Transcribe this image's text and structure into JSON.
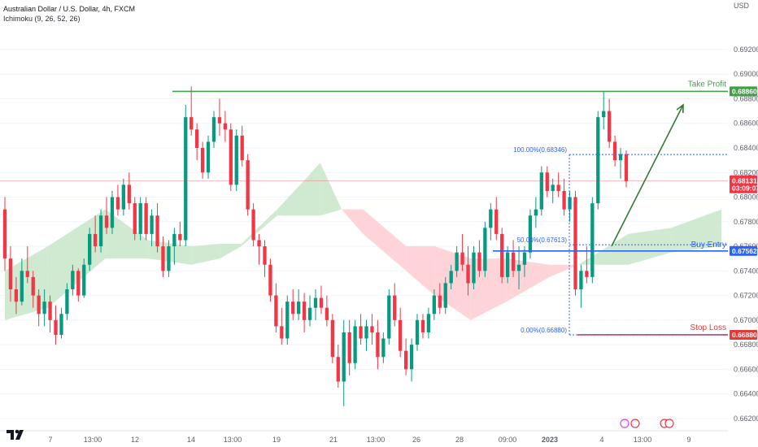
{
  "header": {
    "title": "Australian Dollar / U.S. Dollar, 4h, FXCM",
    "indicator": "Ichimoku (9, 26, 52, 26)"
  },
  "chart_data": {
    "type": "candlestick",
    "currency": "USD",
    "ylim": [
      0.661,
      0.6955
    ],
    "yticks": [
      "0.69200",
      "0.69000",
      "0.68800",
      "0.68600",
      "0.68400",
      "0.68200",
      "0.68000",
      "0.67800",
      "0.67600",
      "0.67400",
      "0.67200",
      "0.67000",
      "0.66800",
      "0.66600",
      "0.66400",
      "0.66200"
    ],
    "xticks": [
      "7",
      "13:00",
      "12",
      "14",
      "13:00",
      "19",
      "21",
      "13:00",
      "26",
      "28",
      "09:00",
      "2023",
      "4",
      "13:00",
      "9"
    ],
    "current_price": "0.68131",
    "countdown": "03:09:07",
    "levels": {
      "take_profit": {
        "label": "Take Profit",
        "price": 0.6886,
        "tag": "0.68860",
        "color": "#43a047"
      },
      "buy_entry": {
        "label": "Buy Entry",
        "price": 0.67562,
        "tag": "0.67562",
        "color": "#2962ff"
      },
      "stop_loss": {
        "label": "Stop Loss",
        "price": 0.6688,
        "tag": "0.66880",
        "color": "#e53935"
      }
    },
    "fib": {
      "color": "#2962ff",
      "levels": [
        {
          "label": "100.00%(0.68346)",
          "price": 0.68346
        },
        {
          "label": "50.00%(0.67613)",
          "price": 0.67613
        },
        {
          "label": "0.00%(0.66880)",
          "price": 0.6688
        }
      ]
    },
    "colors": {
      "up": "#089981",
      "down": "#f23645",
      "cloud_bull": "#c8e6c9",
      "cloud_bear": "#ffcdd2",
      "price_tag": "#f23645"
    },
    "candles": [
      [
        0.679,
        0.68,
        0.674,
        0.675
      ],
      [
        0.675,
        0.676,
        0.6715,
        0.6725
      ],
      [
        0.6725,
        0.6735,
        0.6705,
        0.6715
      ],
      [
        0.6715,
        0.675,
        0.6712,
        0.674
      ],
      [
        0.674,
        0.676,
        0.673,
        0.6735
      ],
      [
        0.6735,
        0.674,
        0.671,
        0.672
      ],
      [
        0.672,
        0.6725,
        0.6695,
        0.6705
      ],
      [
        0.6705,
        0.6725,
        0.6695,
        0.6715
      ],
      [
        0.6715,
        0.672,
        0.669,
        0.67
      ],
      [
        0.67,
        0.6712,
        0.668,
        0.6688
      ],
      [
        0.6688,
        0.671,
        0.6685,
        0.6705
      ],
      [
        0.6705,
        0.673,
        0.67,
        0.6725
      ],
      [
        0.6725,
        0.6745,
        0.672,
        0.674
      ],
      [
        0.674,
        0.6742,
        0.6715,
        0.672
      ],
      [
        0.672,
        0.675,
        0.6718,
        0.6745
      ],
      [
        0.6745,
        0.6775,
        0.674,
        0.677
      ],
      [
        0.677,
        0.6785,
        0.6755,
        0.676
      ],
      [
        0.676,
        0.679,
        0.6755,
        0.6785
      ],
      [
        0.6785,
        0.68,
        0.677,
        0.6775
      ],
      [
        0.6775,
        0.6805,
        0.677,
        0.68
      ],
      [
        0.68,
        0.681,
        0.6785,
        0.679
      ],
      [
        0.679,
        0.6815,
        0.6785,
        0.681
      ],
      [
        0.681,
        0.682,
        0.679,
        0.6795
      ],
      [
        0.6795,
        0.68,
        0.6765,
        0.677
      ],
      [
        0.677,
        0.68,
        0.6765,
        0.6795
      ],
      [
        0.6795,
        0.68,
        0.6765,
        0.677
      ],
      [
        0.677,
        0.679,
        0.676,
        0.6785
      ],
      [
        0.6785,
        0.6795,
        0.6755,
        0.676
      ],
      [
        0.676,
        0.6768,
        0.6735,
        0.674
      ],
      [
        0.674,
        0.6765,
        0.6735,
        0.676
      ],
      [
        0.676,
        0.6775,
        0.6745,
        0.677
      ],
      [
        0.677,
        0.678,
        0.676,
        0.6765
      ],
      [
        0.6765,
        0.6875,
        0.676,
        0.6865
      ],
      [
        0.6865,
        0.689,
        0.685,
        0.6855
      ],
      [
        0.6855,
        0.686,
        0.683,
        0.684
      ],
      [
        0.684,
        0.6845,
        0.6815,
        0.682
      ],
      [
        0.682,
        0.685,
        0.6815,
        0.6845
      ],
      [
        0.6845,
        0.687,
        0.684,
        0.6865
      ],
      [
        0.6865,
        0.688,
        0.685,
        0.686
      ],
      [
        0.686,
        0.687,
        0.6845,
        0.6855
      ],
      [
        0.6855,
        0.686,
        0.6805,
        0.681
      ],
      [
        0.681,
        0.6855,
        0.6805,
        0.685
      ],
      [
        0.685,
        0.6858,
        0.6825,
        0.683
      ],
      [
        0.683,
        0.6835,
        0.6785,
        0.679
      ],
      [
        0.679,
        0.6795,
        0.676,
        0.6765
      ],
      [
        0.6765,
        0.677,
        0.6745,
        0.676
      ],
      [
        0.676,
        0.6765,
        0.6735,
        0.6745
      ],
      [
        0.6745,
        0.675,
        0.6715,
        0.672
      ],
      [
        0.672,
        0.673,
        0.669,
        0.6695
      ],
      [
        0.6695,
        0.671,
        0.668,
        0.6685
      ],
      [
        0.6685,
        0.672,
        0.668,
        0.6715
      ],
      [
        0.6715,
        0.6725,
        0.67,
        0.6705
      ],
      [
        0.6705,
        0.6725,
        0.67,
        0.6715
      ],
      [
        0.6715,
        0.6722,
        0.669,
        0.67
      ],
      [
        0.67,
        0.672,
        0.6695,
        0.671
      ],
      [
        0.671,
        0.6725,
        0.67,
        0.6718
      ],
      [
        0.6718,
        0.6728,
        0.6705,
        0.671
      ],
      [
        0.671,
        0.672,
        0.6695,
        0.67
      ],
      [
        0.67,
        0.6705,
        0.6665,
        0.667
      ],
      [
        0.667,
        0.668,
        0.6645,
        0.665
      ],
      [
        0.665,
        0.67,
        0.663,
        0.669
      ],
      [
        0.669,
        0.67,
        0.6655,
        0.6665
      ],
      [
        0.6665,
        0.67,
        0.666,
        0.6695
      ],
      [
        0.6695,
        0.6705,
        0.668,
        0.6685
      ],
      [
        0.6685,
        0.67,
        0.6675,
        0.6695
      ],
      [
        0.6695,
        0.6705,
        0.668,
        0.669
      ],
      [
        0.669,
        0.67,
        0.666,
        0.667
      ],
      [
        0.667,
        0.669,
        0.6665,
        0.6685
      ],
      [
        0.6685,
        0.6725,
        0.668,
        0.672
      ],
      [
        0.672,
        0.673,
        0.6695,
        0.67
      ],
      [
        0.67,
        0.671,
        0.667,
        0.6675
      ],
      [
        0.6675,
        0.6685,
        0.6655,
        0.666
      ],
      [
        0.666,
        0.6685,
        0.665,
        0.668
      ],
      [
        0.668,
        0.6705,
        0.6675,
        0.67
      ],
      [
        0.67,
        0.6705,
        0.6685,
        0.669
      ],
      [
        0.669,
        0.671,
        0.6685,
        0.6705
      ],
      [
        0.6705,
        0.6725,
        0.67,
        0.672
      ],
      [
        0.672,
        0.673,
        0.6705,
        0.671
      ],
      [
        0.671,
        0.6735,
        0.6705,
        0.673
      ],
      [
        0.673,
        0.6745,
        0.6725,
        0.674
      ],
      [
        0.674,
        0.676,
        0.6735,
        0.6755
      ],
      [
        0.6755,
        0.677,
        0.674,
        0.6745
      ],
      [
        0.6745,
        0.676,
        0.672,
        0.673
      ],
      [
        0.673,
        0.676,
        0.6725,
        0.6755
      ],
      [
        0.6755,
        0.6765,
        0.6735,
        0.674
      ],
      [
        0.674,
        0.678,
        0.6735,
        0.6775
      ],
      [
        0.6775,
        0.6795,
        0.6765,
        0.679
      ],
      [
        0.679,
        0.68,
        0.6765,
        0.677
      ],
      [
        0.677,
        0.6775,
        0.673,
        0.6735
      ],
      [
        0.6735,
        0.676,
        0.673,
        0.6755
      ],
      [
        0.6755,
        0.6765,
        0.6735,
        0.674
      ],
      [
        0.674,
        0.676,
        0.6725,
        0.6745
      ],
      [
        0.6745,
        0.676,
        0.6735,
        0.6755
      ],
      [
        0.6755,
        0.679,
        0.675,
        0.6785
      ],
      [
        0.6785,
        0.68,
        0.6775,
        0.679
      ],
      [
        0.679,
        0.6825,
        0.6785,
        0.682
      ],
      [
        0.682,
        0.6825,
        0.68,
        0.6805
      ],
      [
        0.6805,
        0.6815,
        0.6795,
        0.681
      ],
      [
        0.681,
        0.682,
        0.68,
        0.6805
      ],
      [
        0.6805,
        0.6815,
        0.6785,
        0.679
      ],
      [
        0.679,
        0.6805,
        0.678,
        0.68
      ],
      [
        0.68,
        0.6805,
        0.672,
        0.6725
      ],
      [
        0.6725,
        0.6745,
        0.671,
        0.674
      ],
      [
        0.674,
        0.676,
        0.673,
        0.6735
      ],
      [
        0.6735,
        0.68,
        0.673,
        0.6795
      ],
      [
        0.6795,
        0.687,
        0.679,
        0.6865
      ],
      [
        0.6865,
        0.6886,
        0.6855,
        0.687
      ],
      [
        0.687,
        0.688,
        0.684,
        0.6845
      ],
      [
        0.6845,
        0.685,
        0.6825,
        0.683
      ],
      [
        0.683,
        0.684,
        0.6815,
        0.6835
      ],
      [
        0.6835,
        0.6838,
        0.6808,
        0.6813
      ]
    ],
    "cloud": [
      {
        "x": 0.0,
        "a": 0.674,
        "b": 0.67
      },
      {
        "x": 0.06,
        "a": 0.676,
        "b": 0.671
      },
      {
        "x": 0.14,
        "a": 0.679,
        "b": 0.675
      },
      {
        "x": 0.2,
        "a": 0.6765,
        "b": 0.675
      },
      {
        "x": 0.26,
        "a": 0.676,
        "b": 0.6745
      },
      {
        "x": 0.3,
        "a": 0.6762,
        "b": 0.675
      },
      {
        "x": 0.33,
        "a": 0.6762,
        "b": 0.676
      },
      {
        "x": 0.38,
        "a": 0.679,
        "b": 0.6785
      },
      {
        "x": 0.42,
        "a": 0.6815,
        "b": 0.6785
      },
      {
        "x": 0.44,
        "a": 0.6828,
        "b": 0.6785
      },
      {
        "x": 0.47,
        "a": 0.679,
        "b": 0.679
      },
      {
        "x": 0.5,
        "a": 0.677,
        "b": 0.679
      },
      {
        "x": 0.56,
        "a": 0.674,
        "b": 0.676
      },
      {
        "x": 0.6,
        "a": 0.672,
        "b": 0.676
      },
      {
        "x": 0.65,
        "a": 0.67,
        "b": 0.675
      },
      {
        "x": 0.7,
        "a": 0.6715,
        "b": 0.675
      },
      {
        "x": 0.76,
        "a": 0.6735,
        "b": 0.6745
      },
      {
        "x": 0.8,
        "a": 0.6745,
        "b": 0.6745
      },
      {
        "x": 0.87,
        "a": 0.677,
        "b": 0.6745
      },
      {
        "x": 0.93,
        "a": 0.6775,
        "b": 0.6755
      },
      {
        "x": 1.0,
        "a": 0.679,
        "b": 0.676
      }
    ]
  }
}
